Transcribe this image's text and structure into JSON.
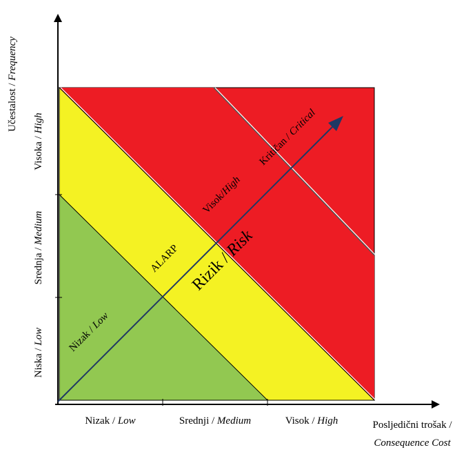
{
  "axes": {
    "y": {
      "prefix": "Učestalost / ",
      "term": "Frequency",
      "ticks": [
        {
          "prefix": "Niska / ",
          "term": "Low"
        },
        {
          "prefix": "Srednja / ",
          "term": "Medium"
        },
        {
          "prefix": "Visoka / ",
          "term": "High"
        }
      ]
    },
    "x": {
      "line1": "Posljedični trošak /",
      "line2": "Consequence Cost",
      "ticks": [
        {
          "prefix": "Nizak / ",
          "term": "Low"
        },
        {
          "prefix": "Srednji / ",
          "term": "Medium"
        },
        {
          "prefix": "Visok / ",
          "term": "High"
        }
      ]
    }
  },
  "zones": {
    "low": {
      "prefix": "Nizak / ",
      "term": "Low",
      "color": "#92c851"
    },
    "alarp": {
      "label": "ALARP",
      "color": "#f4f223"
    },
    "high": {
      "prefix": "Visok/",
      "term": "High",
      "color": "#ed1c24"
    },
    "critical": {
      "prefix": "Kritičan / ",
      "term": "Critical",
      "color": "#ed1c24"
    }
  },
  "risk_arrow": {
    "prefix": "Rizik / ",
    "term": "Risk",
    "color": "#1f3864"
  }
}
